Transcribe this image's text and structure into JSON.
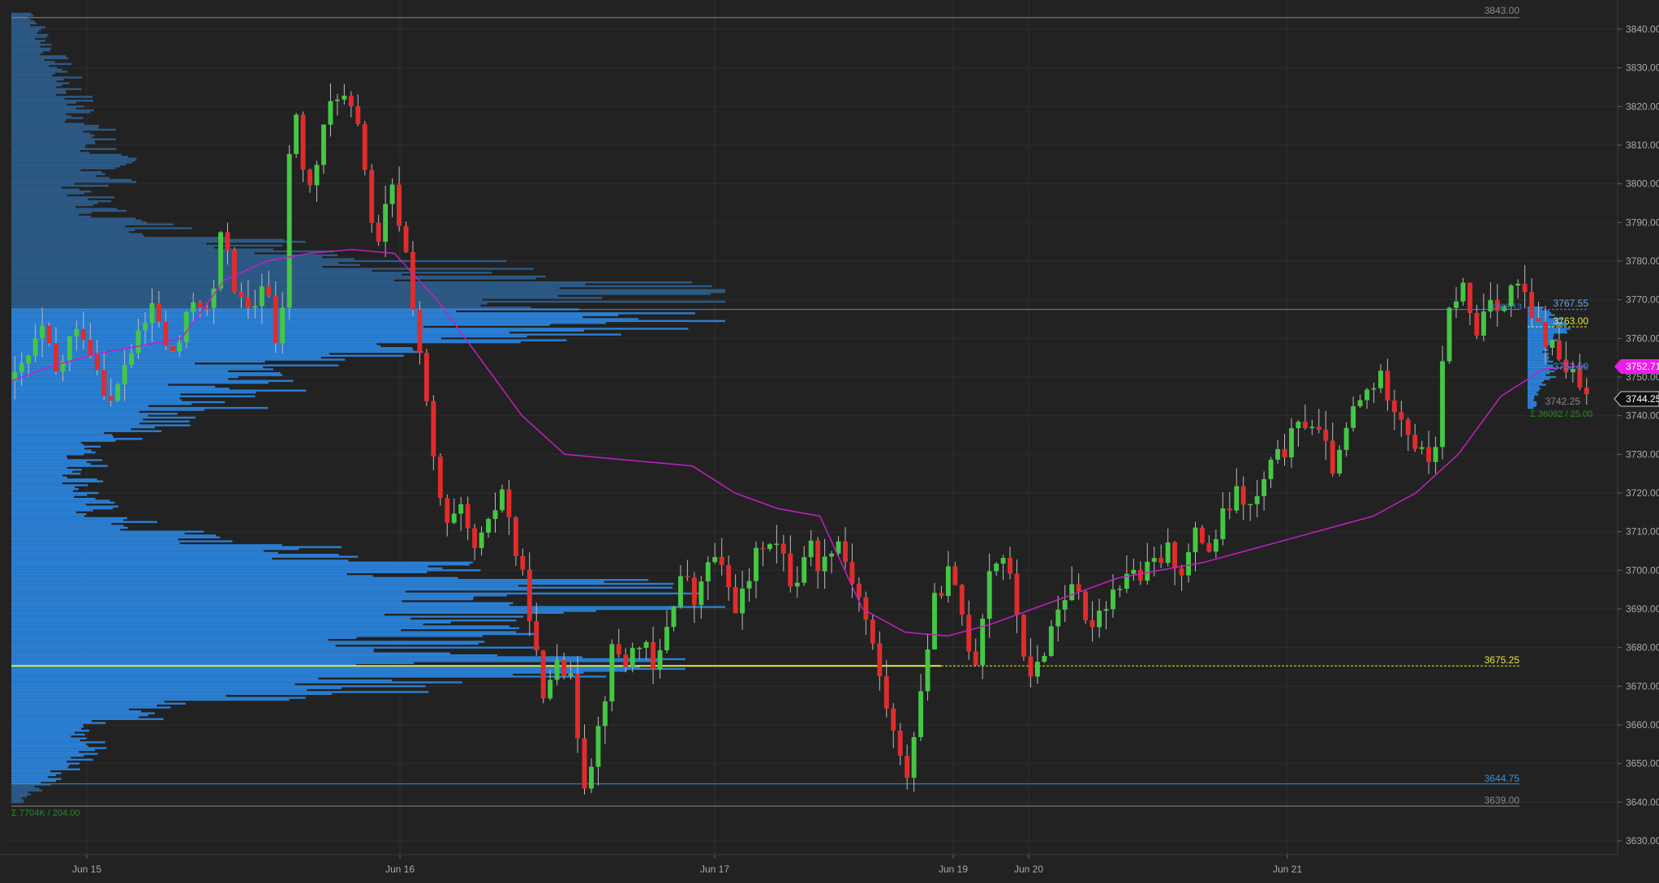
{
  "colors": {
    "background": "#222222",
    "grid": "#2e2e2e",
    "axis_text": "#aaaaaa",
    "candle_up": "#44c744",
    "candle_down": "#e02c2c",
    "volume_profile_light": "#2a7fd4",
    "volume_profile_dark": "#2c5a86",
    "vwap": "#c41fc4",
    "poc_line": "#e8e83a",
    "value_area_line": "#3a8fe0",
    "range_line": "#888888",
    "price_marker_magenta": "#e81fe8",
    "price_marker_current": "#111111"
  },
  "chart_data": {
    "type": "candlestick",
    "title": "",
    "xlabel": "",
    "ylabel": "",
    "ylim": [
      3625,
      3845
    ],
    "grid": true,
    "y_ticks": [
      "3630.00",
      "3640.00",
      "3650.00",
      "3660.00",
      "3670.00",
      "3680.00",
      "3690.00",
      "3700.00",
      "3710.00",
      "3720.00",
      "3730.00",
      "3740.00",
      "3750.00",
      "3760.00",
      "3770.00",
      "3780.00",
      "3790.00",
      "3800.00",
      "3810.00",
      "3820.00",
      "3830.00",
      "3840.00"
    ],
    "x_ticks": [
      "Jun 15",
      "Jun 16",
      "Jun 17",
      "Jun 19",
      "Jun 20",
      "Jun 21"
    ],
    "session_markers": [
      {
        "label": "Jun 15",
        "date": "2023-06-15"
      },
      {
        "label": "Jun 16",
        "date": "2023-06-16"
      },
      {
        "label": "Jun 17",
        "date": "2023-06-17"
      },
      {
        "label": "Jun 19",
        "date": "2023-06-19"
      },
      {
        "label": "Jun 20",
        "date": "2023-06-20"
      },
      {
        "label": "Jun 21",
        "date": "2023-06-21"
      }
    ],
    "series": [
      {
        "name": "",
        "type": "candlestick",
        "close_path": [
          3749,
          3755,
          3762,
          3750,
          3760,
          3762,
          3752,
          3742,
          3755,
          3760,
          3770,
          3755,
          3760,
          3772,
          3765,
          3790,
          3770,
          3765,
          3778,
          3750,
          3826,
          3795,
          3810,
          3825,
          3820,
          3810,
          3780,
          3800,
          3785,
          3760,
          3730,
          3710,
          3715,
          3705,
          3710,
          3722,
          3705,
          3690,
          3665,
          3680,
          3670,
          3645,
          3660,
          3680,
          3676,
          3683,
          3672,
          3688,
          3700,
          3690,
          3705,
          3698,
          3690,
          3700,
          3710,
          3705,
          3695,
          3708,
          3700,
          3710,
          3700,
          3690,
          3675,
          3660,
          3645,
          3665,
          3690,
          3700,
          3690,
          3675,
          3700,
          3705,
          3690,
          3670,
          3680,
          3690,
          3698,
          3685,
          3690,
          3695,
          3700,
          3698,
          3702,
          3705,
          3700,
          3710,
          3705,
          3715,
          3720,
          3715,
          3725,
          3730,
          3735,
          3740,
          3733,
          3725,
          3740,
          3745,
          3750,
          3745,
          3738,
          3730,
          3728,
          3765,
          3775,
          3760,
          3772,
          3768,
          3775,
          3765,
          3760,
          3755,
          3750,
          3744.25
        ]
      },
      {
        "name": "",
        "type": "line",
        "values": [
          3749,
          3753,
          3756,
          3758,
          3760,
          3775,
          3780,
          3782,
          3783,
          3782,
          3770,
          3755,
          3740,
          3730,
          3729,
          3728,
          3727,
          3720,
          3716,
          3714,
          3690,
          3684,
          3683,
          3686,
          3690,
          3694,
          3698,
          3700,
          3702,
          3705,
          3708,
          3711,
          3714,
          3720,
          3730,
          3745,
          3752,
          3753
        ]
      }
    ],
    "annotations": {
      "range_high": "3843.00",
      "range_low": "3639.00",
      "poc": "3675.25",
      "value_area_low": "3644.75",
      "profile_stats": "Σ 7704K / 204.00",
      "dev_value_area_high": "3767.55",
      "dev_value_area_high_left": "3766.13",
      "dev_poc": "3763.00",
      "dev_value_area_low": "3752.50",
      "dev_low": "3742.25",
      "dev_profile_stats": "Σ 36092 / 25.00",
      "vwap_price": "3752.71",
      "last_price": "3744.25"
    }
  }
}
